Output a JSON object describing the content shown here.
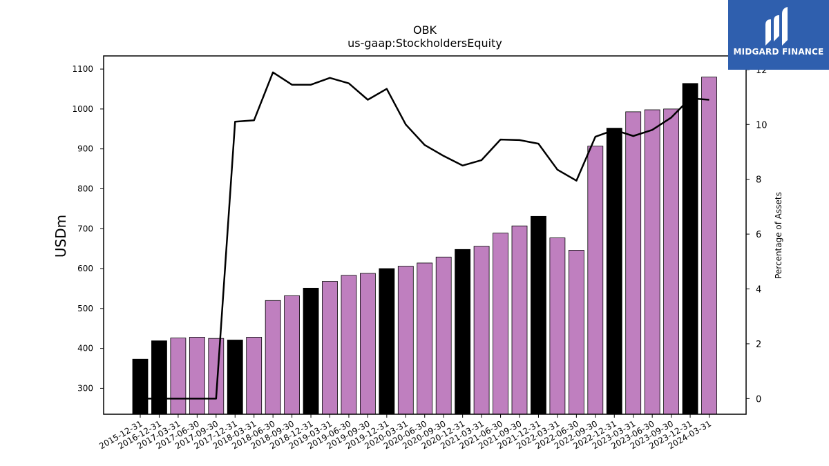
{
  "chart_data": {
    "type": "bar",
    "title": "OBK",
    "subtitle": "us-gaap:StockholdersEquity",
    "ylabel": "USDm",
    "y2label": "Percentage of Assets",
    "ylim": [
      235,
      1133
    ],
    "y2lim": [
      -0.57,
      12.5
    ],
    "yticks": [
      300,
      400,
      500,
      600,
      700,
      800,
      900,
      1000,
      1100
    ],
    "y2ticks": [
      0,
      2,
      4,
      6,
      8,
      10,
      12
    ],
    "categories": [
      "2015-12-31",
      "2016-12-31",
      "2017-03-31",
      "2017-06-30",
      "2017-09-30",
      "2017-12-31",
      "2018-03-31",
      "2018-06-30",
      "2018-09-30",
      "2018-12-31",
      "2019-03-31",
      "2019-06-30",
      "2019-09-30",
      "2019-12-31",
      "2020-03-31",
      "2020-06-30",
      "2020-09-30",
      "2020-12-31",
      "2021-03-31",
      "2021-06-30",
      "2021-09-30",
      "2021-12-31",
      "2022-03-31",
      "2022-06-30",
      "2022-09-30",
      "2022-12-31",
      "2023-03-31",
      "2023-06-30",
      "2023-09-30",
      "2023-12-31",
      "2024-03-31"
    ],
    "series": [
      {
        "type": "bar",
        "axis": "left",
        "values": [
          373,
          419,
          426,
          428,
          425,
          421,
          428,
          520,
          532,
          551,
          568,
          583,
          588,
          600,
          606,
          614,
          629,
          648,
          656,
          689,
          707,
          731,
          677,
          646,
          907,
          952,
          993,
          998,
          1000,
          1064,
          1080
        ],
        "colors": [
          "#000000",
          "#000000",
          "#bf7fbf",
          "#bf7fbf",
          "#bf7fbf",
          "#000000",
          "#bf7fbf",
          "#bf7fbf",
          "#bf7fbf",
          "#000000",
          "#bf7fbf",
          "#bf7fbf",
          "#bf7fbf",
          "#000000",
          "#bf7fbf",
          "#bf7fbf",
          "#bf7fbf",
          "#000000",
          "#bf7fbf",
          "#bf7fbf",
          "#bf7fbf",
          "#000000",
          "#bf7fbf",
          "#bf7fbf",
          "#bf7fbf",
          "#000000",
          "#bf7fbf",
          "#bf7fbf",
          "#bf7fbf",
          "#000000",
          "#bf7fbf"
        ]
      },
      {
        "type": "line",
        "axis": "right",
        "values": [
          0.0,
          0.0,
          0.0,
          0.0,
          0.0,
          10.1,
          10.15,
          11.9,
          11.45,
          11.45,
          11.7,
          11.5,
          10.9,
          11.3,
          10.0,
          9.25,
          8.85,
          8.5,
          8.7,
          9.45,
          9.43,
          9.3,
          8.35,
          7.95,
          9.55,
          9.8,
          9.58,
          9.8,
          10.25,
          10.95,
          10.9
        ],
        "color": "#000000"
      }
    ],
    "grid": false,
    "colors": {
      "quarter_bar": "#bf7fbf",
      "year_end_bar": "#000000",
      "line": "#000000"
    }
  },
  "logo": {
    "text": "MIDGARD FINANCE",
    "background": "#2f5fae"
  }
}
